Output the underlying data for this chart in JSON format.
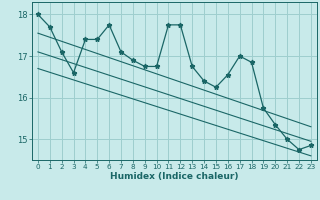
{
  "xlabel": "Humidex (Indice chaleur)",
  "ylabel": "",
  "bg_color": "#c8eaea",
  "line_color": "#1a6666",
  "grid_color": "#9ecece",
  "x_data": [
    0,
    1,
    2,
    3,
    4,
    5,
    6,
    7,
    8,
    9,
    10,
    11,
    12,
    13,
    14,
    15,
    16,
    17,
    18,
    19,
    20,
    21,
    22,
    23
  ],
  "y_data": [
    18.0,
    17.7,
    17.1,
    16.6,
    17.4,
    17.4,
    17.75,
    17.1,
    16.9,
    16.75,
    16.75,
    17.75,
    17.75,
    16.75,
    16.4,
    16.25,
    16.55,
    17.0,
    16.85,
    15.75,
    15.35,
    15.0,
    14.75,
    14.85
  ],
  "trend1_x": [
    0,
    23
  ],
  "trend1_y": [
    17.55,
    15.3
  ],
  "trend2_x": [
    0,
    23
  ],
  "trend2_y": [
    17.1,
    14.95
  ],
  "trend3_x": [
    0,
    23
  ],
  "trend3_y": [
    16.7,
    14.6
  ],
  "ylim": [
    14.5,
    18.3
  ],
  "xlim": [
    -0.5,
    23.5
  ],
  "yticks": [
    15,
    16,
    17,
    18
  ],
  "xticks": [
    0,
    1,
    2,
    3,
    4,
    5,
    6,
    7,
    8,
    9,
    10,
    11,
    12,
    13,
    14,
    15,
    16,
    17,
    18,
    19,
    20,
    21,
    22,
    23
  ]
}
